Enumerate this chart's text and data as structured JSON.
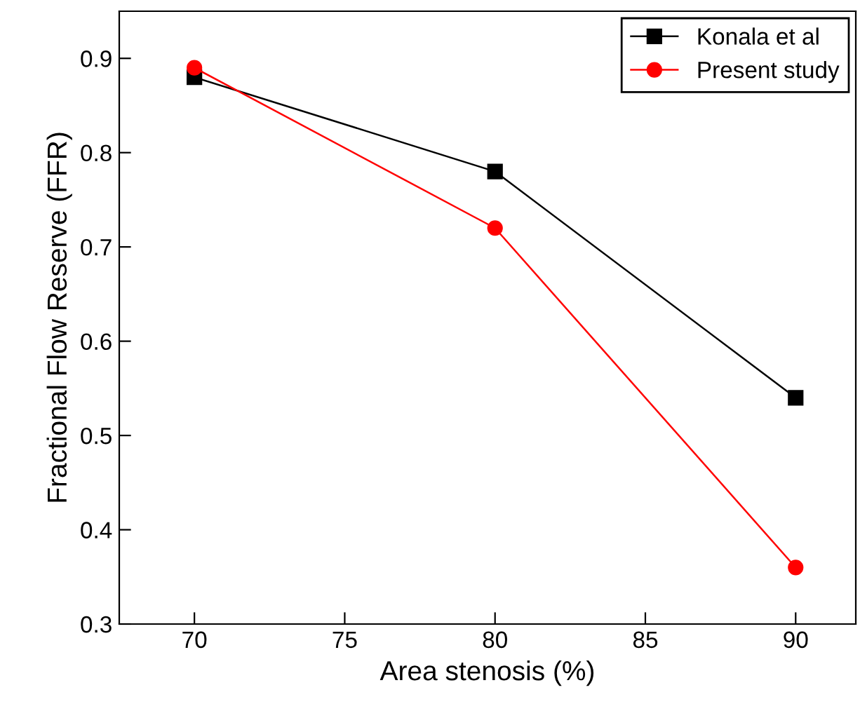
{
  "chart_data": {
    "type": "line",
    "xlabel": "Area stenosis (%)",
    "ylabel": "Fractional Flow Reserve (FFR)",
    "x": [
      70,
      80,
      90
    ],
    "series": [
      {
        "name": "Konala et al",
        "color": "#000000",
        "values": [
          0.88,
          0.78,
          0.54
        ],
        "marker": "square"
      },
      {
        "name": "Present study",
        "color": "#ff0000",
        "values": [
          0.89,
          0.72,
          0.36
        ],
        "marker": "circle"
      }
    ],
    "xlim": [
      67.5,
      92
    ],
    "ylim": [
      0.3,
      0.95
    ],
    "xticks": [
      70,
      75,
      80,
      85,
      90
    ],
    "yticks": [
      0.3,
      0.4,
      0.5,
      0.6,
      0.7,
      0.8,
      0.9
    ],
    "grid": false,
    "legend": "top right",
    "line_style": "solid"
  }
}
